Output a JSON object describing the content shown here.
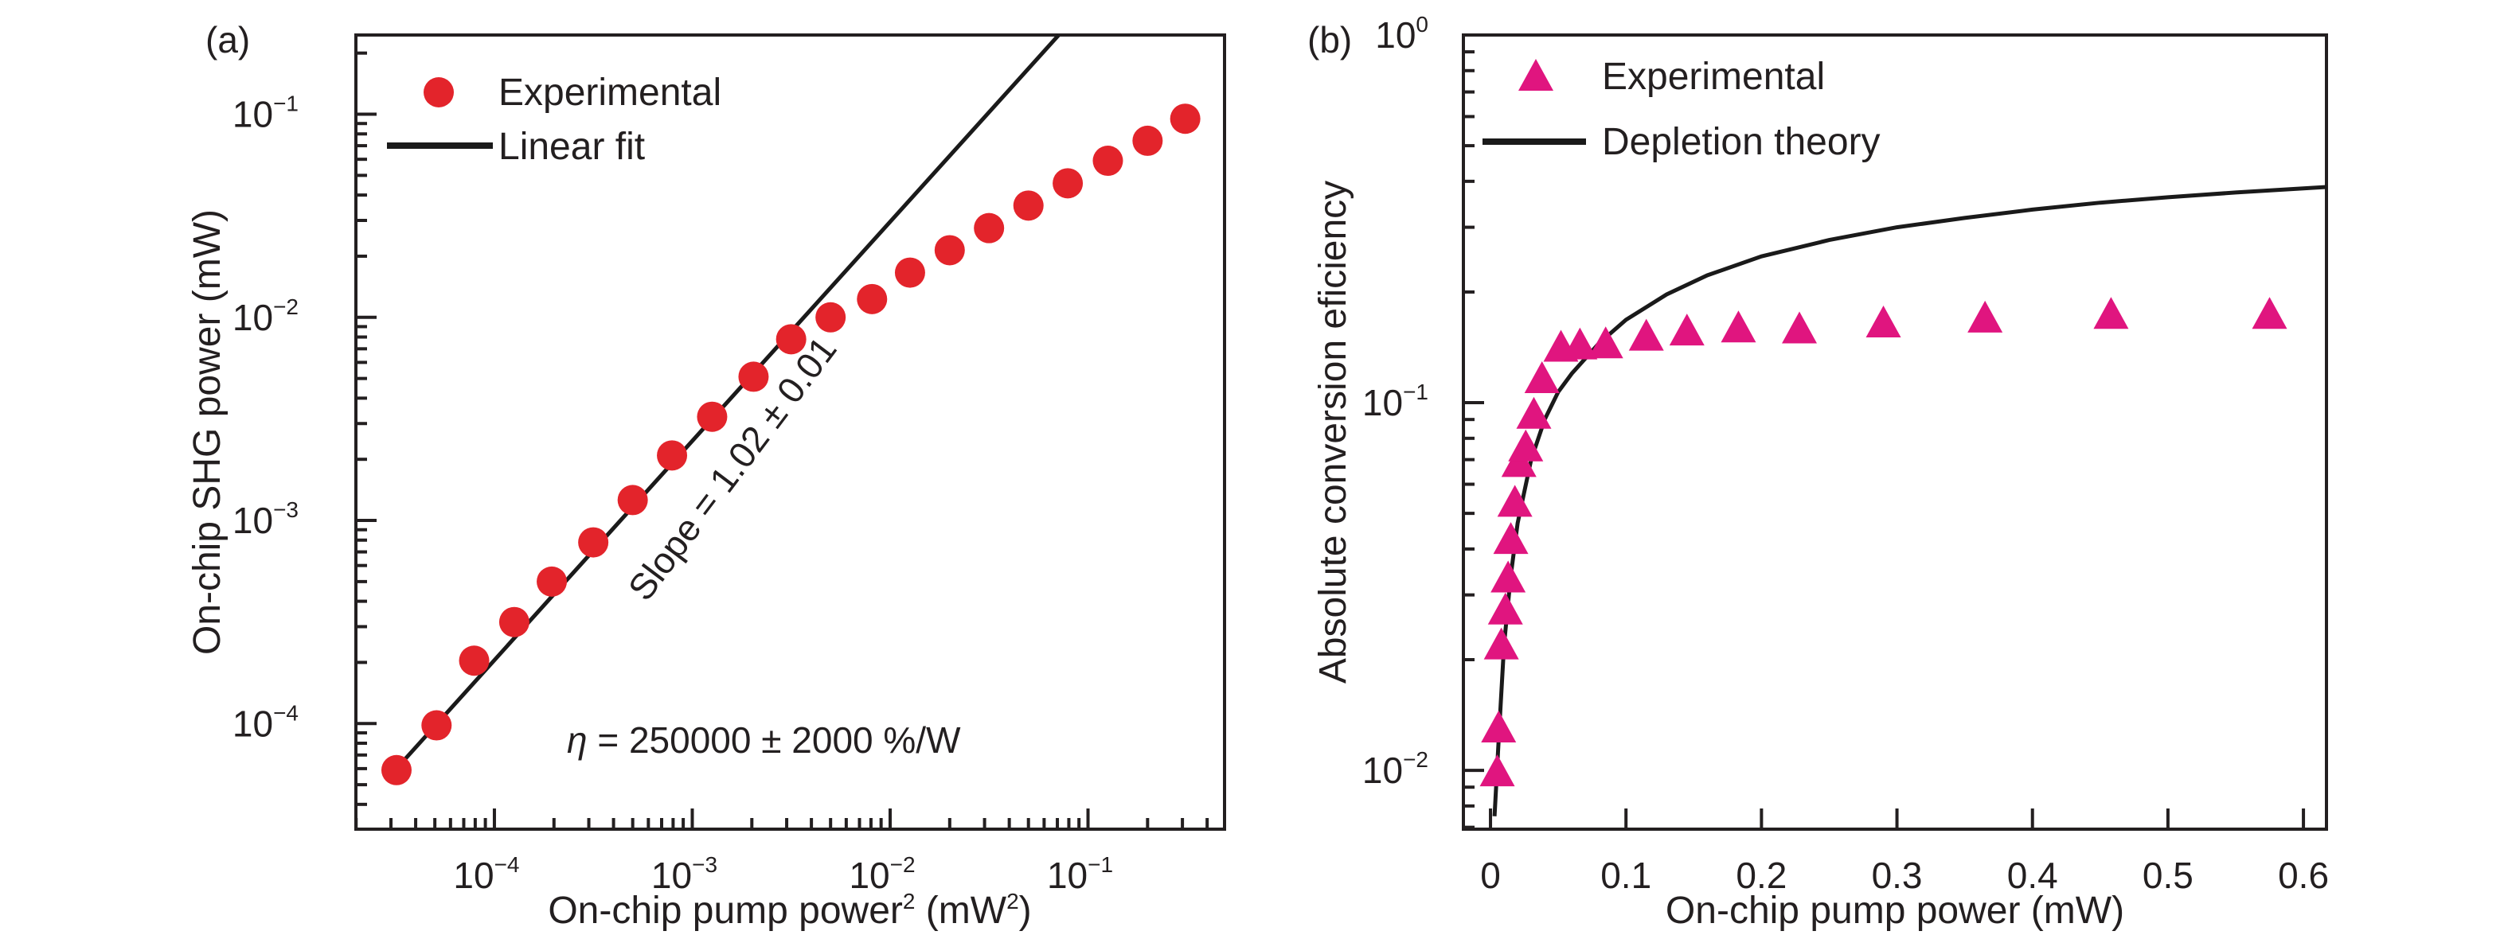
{
  "chart_data": [
    {
      "panel": "(a)",
      "type": "scatter",
      "xscale": "log",
      "yscale": "log",
      "xlabel": "On-chip pump power",
      "xlabel_sup": "2",
      "xlabel_units": " (mW",
      "xlabel_units_sup": "2",
      "xlabel_close": ")",
      "ylabel": "On-chip SHG power (mW)",
      "xlim_log10": [
        -4.7,
        -0.31
      ],
      "ylim_log10": [
        -4.52,
        -0.61
      ],
      "xticks": [
        {
          "base": "10",
          "exp": "−4",
          "log": -4
        },
        {
          "base": "10",
          "exp": "−3",
          "log": -3
        },
        {
          "base": "10",
          "exp": "−2",
          "log": -2
        },
        {
          "base": "10",
          "exp": "−1",
          "log": -1
        }
      ],
      "yticks": [
        {
          "base": "10",
          "exp": "−4",
          "log": -4
        },
        {
          "base": "10",
          "exp": "−3",
          "log": -3
        },
        {
          "base": "10",
          "exp": "−2",
          "log": -2
        },
        {
          "base": "10",
          "exp": "−1",
          "log": -1
        }
      ],
      "legend": [
        {
          "label": "Experimental",
          "marker": "circle"
        },
        {
          "label": "Linear fit",
          "marker": "line"
        }
      ],
      "legend_position": "top-left",
      "series": [
        {
          "name": "Experimental",
          "color": "#e3242b",
          "x": [
            3.2e-05,
            5.1e-05,
            7.9e-05,
            0.000126,
            0.000195,
            0.000316,
            0.0005,
            0.00079,
            0.00126,
            0.00204,
            0.00316,
            0.005,
            0.0081,
            0.0126,
            0.02,
            0.0316,
            0.05,
            0.079,
            0.126,
            0.2,
            0.31
          ],
          "y": [
            5.9e-05,
            9.8e-05,
            0.000204,
            0.000316,
            0.0005,
            0.00078,
            0.00126,
            0.00209,
            0.00324,
            0.0051,
            0.0078,
            0.01,
            0.0123,
            0.0166,
            0.0214,
            0.0275,
            0.0355,
            0.0457,
            0.059,
            0.074,
            0.095
          ]
        },
        {
          "name": "Linear fit",
          "color": "#1a1a1a",
          "x": [
            3.2e-05,
            0.071
          ],
          "y": [
            6e-05,
            0.245
          ]
        }
      ],
      "annotations": [
        {
          "text": "Slope = 1.02 ± 0.01",
          "rotation_deg": -53
        },
        {
          "text_prefix": "η",
          "text": " = 250000 ± 2000 %/W"
        }
      ]
    },
    {
      "panel": "(b)",
      "type": "scatter",
      "xscale": "linear",
      "yscale": "log",
      "xlabel": "On-chip pump power (mW)",
      "ylabel": "Absolute conversion eficiency",
      "xlim": [
        -0.02,
        0.617
      ],
      "ylim_log10": [
        -2.16,
        0.0
      ],
      "xticks": [
        {
          "label": "0",
          "v": 0
        },
        {
          "label": "0.1",
          "v": 0.1
        },
        {
          "label": "0.2",
          "v": 0.2
        },
        {
          "label": "0.3",
          "v": 0.3
        },
        {
          "label": "0.4",
          "v": 0.4
        },
        {
          "label": "0.5",
          "v": 0.5
        },
        {
          "label": "0.6",
          "v": 0.6
        }
      ],
      "yticks": [
        {
          "base": "10",
          "exp": "−2",
          "log": -2
        },
        {
          "base": "10",
          "exp": "−1",
          "log": -1
        },
        {
          "base": "10",
          "exp": "0",
          "log": 0
        }
      ],
      "legend": [
        {
          "label": "Experimental",
          "marker": "triangle"
        },
        {
          "label": "Depletion theory",
          "marker": "line"
        }
      ],
      "legend_position": "top-left",
      "series": [
        {
          "name": "Experimental",
          "color": "#e0157f",
          "x": [
            0.005,
            0.006,
            0.008,
            0.011,
            0.013,
            0.015,
            0.018,
            0.021,
            0.026,
            0.032,
            0.038,
            0.052,
            0.066,
            0.085,
            0.115,
            0.145,
            0.183,
            0.228,
            0.29,
            0.365,
            0.458,
            0.575
          ],
          "y": [
            0.0098,
            0.0129,
            0.0217,
            0.027,
            0.033,
            0.042,
            0.053,
            0.068,
            0.075,
            0.092,
            0.115,
            0.14,
            0.142,
            0.143,
            0.15,
            0.155,
            0.158,
            0.157,
            0.163,
            0.168,
            0.172,
            0.172
          ]
        },
        {
          "name": "Depletion theory",
          "color": "#1a1a1a",
          "x": [
            0.003,
            0.006,
            0.01,
            0.015,
            0.02,
            0.03,
            0.04,
            0.05,
            0.06,
            0.08,
            0.1,
            0.13,
            0.16,
            0.2,
            0.25,
            0.3,
            0.35,
            0.4,
            0.45,
            0.5,
            0.55,
            0.617
          ],
          "y": [
            0.0075,
            0.012,
            0.022,
            0.034,
            0.047,
            0.07,
            0.09,
            0.107,
            0.12,
            0.145,
            0.168,
            0.197,
            0.222,
            0.25,
            0.277,
            0.3,
            0.318,
            0.335,
            0.35,
            0.362,
            0.373,
            0.386
          ]
        }
      ]
    }
  ]
}
